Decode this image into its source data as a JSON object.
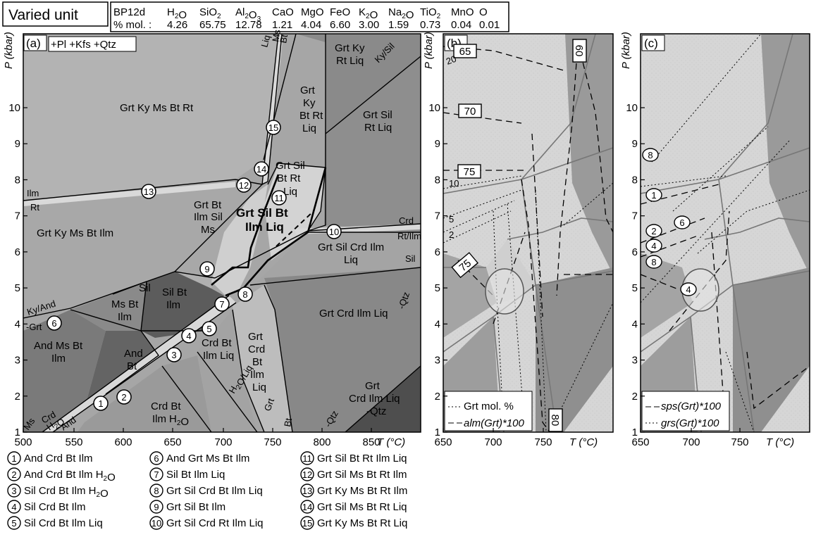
{
  "header": {
    "title": "Varied unit",
    "sample": "BP12d",
    "row_label": "% mol. :",
    "oxides": [
      {
        "base": "H",
        "sub": "2",
        "tail": "O",
        "value": "4.26"
      },
      {
        "base": "SiO",
        "sub": "2",
        "tail": "",
        "value": "65.75"
      },
      {
        "base": "Al",
        "sub": "2",
        "tail": "O",
        "sub2": "3",
        "value": "12.78"
      },
      {
        "base": "CaO",
        "sub": "",
        "tail": "",
        "value": "1.21"
      },
      {
        "base": "MgO",
        "sub": "",
        "tail": "",
        "value": "4.04"
      },
      {
        "base": "FeO",
        "sub": "",
        "tail": "",
        "value": "6.60"
      },
      {
        "base": "K",
        "sub": "2",
        "tail": "O",
        "value": "3.00"
      },
      {
        "base": "Na",
        "sub": "2",
        "tail": "O",
        "value": "1.59"
      },
      {
        "base": "TiO",
        "sub": "2",
        "tail": "",
        "value": "0.73"
      },
      {
        "base": "MnO",
        "sub": "",
        "tail": "",
        "value": "0.04"
      },
      {
        "base": "O",
        "sub": "",
        "tail": "",
        "value": "0.01"
      }
    ]
  },
  "panel_a": {
    "letter": "(a)",
    "excess": "+Pl +Kfs +Qtz",
    "ylabel": "P (kbar)",
    "xlabel": "T (°C)",
    "xticks": [
      "500",
      "550",
      "600",
      "650",
      "700",
      "750",
      "800",
      "850"
    ],
    "yticks": [
      "1",
      "2",
      "3",
      "4",
      "5",
      "6",
      "7",
      "8",
      "9",
      "10"
    ],
    "fields": [
      "Grt Ky Ms Bt Rt",
      "Grt Ky Ms Bt Ilm",
      "Grt Bt Ilm Sil Ms",
      "Grt Sil Bt Ilm Liq",
      "Grt Sil Bt Rt Liq",
      "Grt Ky Bt Rt Liq",
      "Grt Ky Rt Liq",
      "Grt Sil Rt Liq",
      "Grt Sil Crd Ilm Liq",
      "Grt Crd Ilm Liq",
      "Grt Crd Bt Ilm Liq",
      "Crd Bt Ilm Liq",
      "Crd Bt Ilm H2O",
      "Sil Bt Ilm",
      "Ms Bt Sil Ilm",
      "And Bt Ilm",
      "And Ms Bt Ilm",
      "Grt Crd Ilm Liq -Qtz"
    ],
    "line_labels": [
      "Liq",
      "Ms",
      "Bt",
      "Ky/Sil",
      "Ilm",
      "Rt",
      "Crd",
      "Rt/Ilm",
      "Sil",
      "-Qtz",
      "Ky/And",
      "-Grt",
      "H2O/Liq",
      "Grt",
      "Bt",
      "-Qtz",
      "Ms",
      "Crd",
      "H2O",
      "And"
    ],
    "markers": [
      "1",
      "2",
      "3",
      "4",
      "5",
      "6",
      "7",
      "8",
      "9",
      "10",
      "11",
      "12",
      "13",
      "14",
      "15"
    ]
  },
  "panel_b": {
    "letter": "(b)",
    "ylabel": "P (kbar)",
    "xlabel": "T (°C)",
    "xticks": [
      "650",
      "700",
      "750"
    ],
    "yticks": [
      "1",
      "2",
      "3",
      "4",
      "5",
      "6",
      "7",
      "8",
      "9",
      "10"
    ],
    "contour_boxes": [
      "65",
      "70",
      "75",
      "75",
      "80",
      "60"
    ],
    "contour_labels": [
      "20",
      "10",
      "5",
      "2"
    ],
    "legend": [
      "Grt mol. %",
      "alm(Grt)*100"
    ]
  },
  "panel_c": {
    "letter": "(c)",
    "ylabel": "P (kbar)",
    "xlabel": "T (°C)",
    "xticks": [
      "650",
      "700",
      "750"
    ],
    "yticks": [
      "1",
      "2",
      "3",
      "4",
      "5",
      "6",
      "7",
      "8",
      "9",
      "10"
    ],
    "contour_boxes": [
      "1",
      "6",
      "2",
      "4",
      "8",
      "8",
      "4"
    ],
    "legend": [
      "sps(Grt)*100",
      "grs(Grt)*100"
    ]
  },
  "legend": {
    "items": [
      {
        "n": "1",
        "text": "And Crd Bt Ilm"
      },
      {
        "n": "2",
        "text": "And Crd Bt Ilm H2O"
      },
      {
        "n": "3",
        "text": "Sil Crd Bt Ilm H2O"
      },
      {
        "n": "4",
        "text": "Sil Crd Bt Ilm"
      },
      {
        "n": "5",
        "text": "Sil Crd Bt Ilm Liq"
      },
      {
        "n": "6",
        "text": "And Grt Ms Bt Ilm"
      },
      {
        "n": "7",
        "text": "Sil Bt Ilm Liq"
      },
      {
        "n": "8",
        "text": "Grt Sil Crd Bt Ilm Liq"
      },
      {
        "n": "9",
        "text": "Grt Sil Bt Ilm"
      },
      {
        "n": "10",
        "text": "Grt Sil Crd Rt Ilm Liq"
      },
      {
        "n": "11",
        "text": "Grt Sil Bt Rt Ilm Liq"
      },
      {
        "n": "12",
        "text": "Grt Sil Ms Bt Rt Ilm"
      },
      {
        "n": "13",
        "text": "Grt Ky Ms Bt Rt Ilm"
      },
      {
        "n": "14",
        "text": "Grt Sil Ms Bt Rt Liq"
      },
      {
        "n": "15",
        "text": "Grt Ky Ms Bt Rt Liq"
      }
    ]
  }
}
